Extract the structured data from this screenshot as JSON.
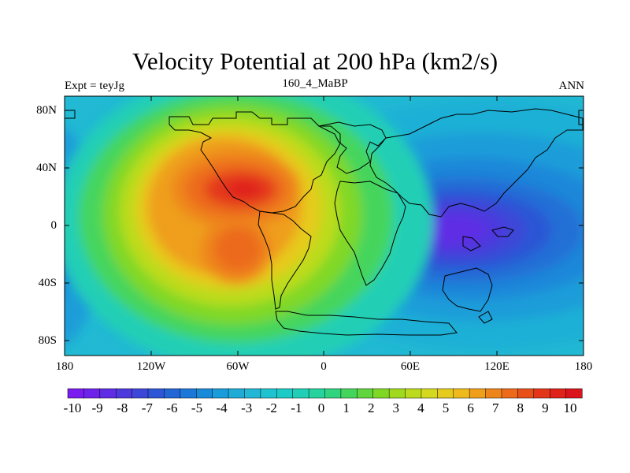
{
  "title": "Velocity Potential at 200 hPa (km2/s)",
  "subtitle_left": "Expt = teyJg",
  "subtitle_center": "160_4_MaBP",
  "subtitle_right": "ANN",
  "y_ticks": [
    "80N",
    "40N",
    "0",
    "40S",
    "80S"
  ],
  "x_ticks": [
    "180",
    "120W",
    "60W",
    "0",
    "60E",
    "120E",
    "180"
  ],
  "colorbar": {
    "labels": [
      "-10",
      "-9",
      "-8",
      "-7",
      "-6",
      "-5",
      "-4",
      "-3",
      "-2",
      "-1",
      "0",
      "1",
      "2",
      "3",
      "4",
      "5",
      "6",
      "7",
      "8",
      "9",
      "10"
    ],
    "colors": [
      "#7a1cf0",
      "#6d23ea",
      "#5e2de4",
      "#4d39de",
      "#3c46d8",
      "#2c56d5",
      "#2266d6",
      "#1c78d8",
      "#198ad9",
      "#199cd9",
      "#1eabd6",
      "#22b7d4",
      "#1fc2cf",
      "#1ccac6",
      "#20cfb5",
      "#26d39e",
      "#30d47f",
      "#45d55d",
      "#60d53f",
      "#80d826",
      "#a0da1e",
      "#bcdb1e",
      "#d4d81e",
      "#e6cb1e",
      "#eeba1c",
      "#ef9f1a",
      "#ee851a",
      "#ec6a1a",
      "#e8501a",
      "#e4371a",
      "#e0231a",
      "#d9141a"
    ]
  }
}
